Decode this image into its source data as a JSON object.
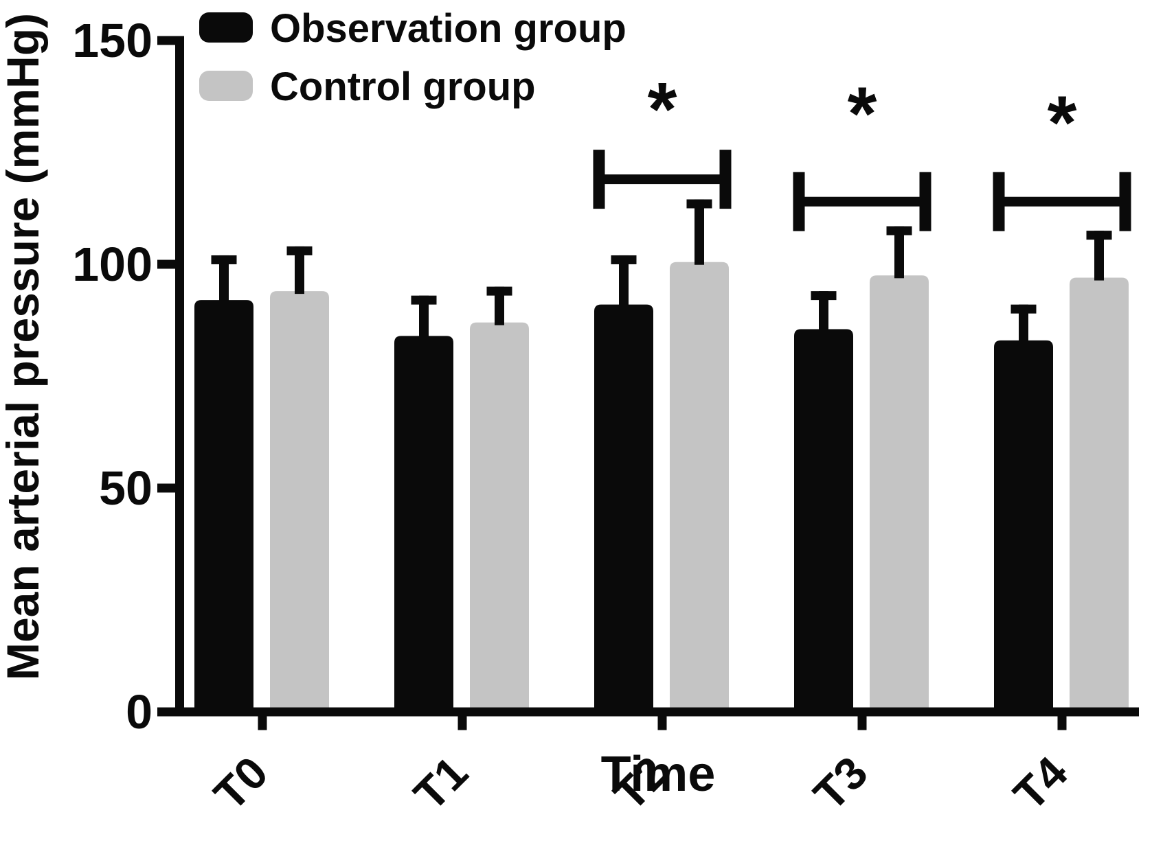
{
  "chart_data": {
    "type": "bar",
    "title": "",
    "xlabel": "Time",
    "ylabel": "Mean arterial pressure (mmHg)",
    "categories": [
      "T0",
      "T1",
      "T2",
      "T3",
      "T4"
    ],
    "series": [
      {
        "name": "Observation group",
        "color": "#0a0a0a",
        "values": [
          92,
          84,
          91,
          85.5,
          83
        ],
        "errors_plus": [
          10,
          9,
          11,
          8.5,
          8
        ]
      },
      {
        "name": "Control group",
        "color": "#c4c4c4",
        "values": [
          94,
          87,
          100.5,
          97.5,
          97
        ],
        "errors_plus": [
          10,
          8,
          14,
          11,
          10.5
        ]
      }
    ],
    "ylim": [
      0,
      150
    ],
    "yticks": [
      0,
      50,
      100,
      150
    ],
    "grid": false,
    "legend_position": "top-left",
    "error_bars": "upper-only",
    "error_bar_color": "#0a0a0a",
    "significance_annotations": [
      {
        "category": "T2",
        "label": "*",
        "bracket_value": 119,
        "star_value": 137
      },
      {
        "category": "T3",
        "label": "*",
        "bracket_value": 114,
        "star_value": 136
      },
      {
        "category": "T4",
        "label": "*",
        "bracket_value": 114,
        "star_value": 134
      }
    ]
  }
}
